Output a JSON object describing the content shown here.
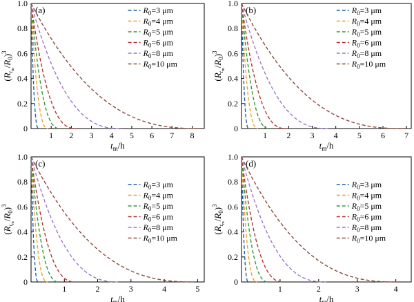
{
  "figure": {
    "unit_label": "μm",
    "colors": [
      "#1f5fa8",
      "#f0a020",
      "#2e9a3a",
      "#b8322e",
      "#9b77c9",
      "#8b4a3c"
    ]
  },
  "chart_data": [
    {
      "type": "line",
      "panel_label": "(a)",
      "xlabel": "t_m/h",
      "ylabel": "(R_t_m/R_0)^3",
      "xlim": [
        0,
        8.6
      ],
      "ylim": [
        0,
        1.0
      ],
      "xticks": [
        0,
        1,
        2,
        3,
        4,
        5,
        6,
        7,
        8
      ],
      "yticks": [
        0,
        0.2,
        0.4,
        0.6,
        0.8,
        1.0
      ],
      "ytick_labels": [
        "0",
        "0.2",
        "0.4",
        "0.6",
        "0.8",
        "1.0"
      ],
      "legend": "top-right",
      "grid": false,
      "series": [
        {
          "name": "R0=3 μm",
          "r0": "3",
          "end_x": 0.38
        },
        {
          "name": "R0=4 μm",
          "r0": "4",
          "end_x": 0.85
        },
        {
          "name": "R0=5 μm",
          "r0": "5",
          "end_x": 1.45
        },
        {
          "name": "R0=6 μm",
          "r0": "6",
          "end_x": 2.25
        },
        {
          "name": "R0=8 μm",
          "r0": "8",
          "end_x": 4.5
        },
        {
          "name": "R0=10 μm",
          "r0": "10",
          "end_x": 8.4
        }
      ]
    },
    {
      "type": "line",
      "panel_label": "(b)",
      "xlabel": "t_m/h",
      "ylabel": "(R_t_m/R_0)^3",
      "xlim": [
        0,
        7.2
      ],
      "ylim": [
        0,
        1.0
      ],
      "xticks": [
        0,
        1,
        2,
        3,
        4,
        5,
        6,
        7
      ],
      "yticks": [
        0,
        0.2,
        0.4,
        0.6,
        0.8,
        1.0
      ],
      "ytick_labels": [
        "0",
        "0.2",
        "0.4",
        "0.6",
        "0.8",
        "1.0"
      ],
      "legend": "top-right",
      "grid": false,
      "series": [
        {
          "name": "R0=3 μm",
          "r0": "3",
          "end_x": 0.31
        },
        {
          "name": "R0=4 μm",
          "r0": "4",
          "end_x": 0.7
        },
        {
          "name": "R0=5 μm",
          "r0": "5",
          "end_x": 1.2
        },
        {
          "name": "R0=6 μm",
          "r0": "6",
          "end_x": 1.9
        },
        {
          "name": "R0=8 μm",
          "r0": "8",
          "end_x": 3.7
        },
        {
          "name": "R0=10 μm",
          "r0": "10",
          "end_x": 6.9
        }
      ]
    },
    {
      "type": "line",
      "panel_label": "(c)",
      "xlabel": "t_m/h",
      "ylabel": "(R_t_m/R_0)^3",
      "xlim": [
        0,
        5.2
      ],
      "ylim": [
        0,
        1.0
      ],
      "xticks": [
        0,
        1,
        2,
        3,
        4,
        5
      ],
      "yticks": [
        0,
        0.2,
        0.4,
        0.6,
        0.8,
        1.0
      ],
      "ytick_labels": [
        "0",
        "0.2",
        "0.4",
        "0.6",
        "0.8",
        "1.0"
      ],
      "legend": "center-right",
      "grid": false,
      "series": [
        {
          "name": "R0=3 μm",
          "r0": "3",
          "end_x": 0.22
        },
        {
          "name": "R0=4 μm",
          "r0": "4",
          "end_x": 0.5
        },
        {
          "name": "R0=5 μm",
          "r0": "5",
          "end_x": 0.85
        },
        {
          "name": "R0=6 μm",
          "r0": "6",
          "end_x": 1.35
        },
        {
          "name": "R0=8 μm",
          "r0": "8",
          "end_x": 2.65
        },
        {
          "name": "R0=10 μm",
          "r0": "10",
          "end_x": 4.95
        }
      ]
    },
    {
      "type": "line",
      "panel_label": "(d)",
      "xlabel": "t_m/h",
      "ylabel": "(R_t_m/R_0)^3",
      "xlim": [
        0,
        4.4
      ],
      "ylim": [
        0,
        1.0
      ],
      "xticks": [
        0,
        1,
        2,
        3,
        4
      ],
      "yticks": [
        0,
        0.2,
        0.4,
        0.6,
        0.8,
        1.0
      ],
      "ytick_labels": [
        "0",
        "0.2",
        "0.4",
        "0.6",
        "0.8",
        "1.0"
      ],
      "legend": "center-right",
      "grid": false,
      "series": [
        {
          "name": "R0=3 μm",
          "r0": "3",
          "end_x": 0.18
        },
        {
          "name": "R0=4 μm",
          "r0": "4",
          "end_x": 0.4
        },
        {
          "name": "R0=5 μm",
          "r0": "5",
          "end_x": 0.7
        },
        {
          "name": "R0=6 μm",
          "r0": "6",
          "end_x": 1.1
        },
        {
          "name": "R0=8 μm",
          "r0": "8",
          "end_x": 2.2
        },
        {
          "name": "R0=10 μm",
          "r0": "10",
          "end_x": 4.05
        }
      ]
    }
  ]
}
